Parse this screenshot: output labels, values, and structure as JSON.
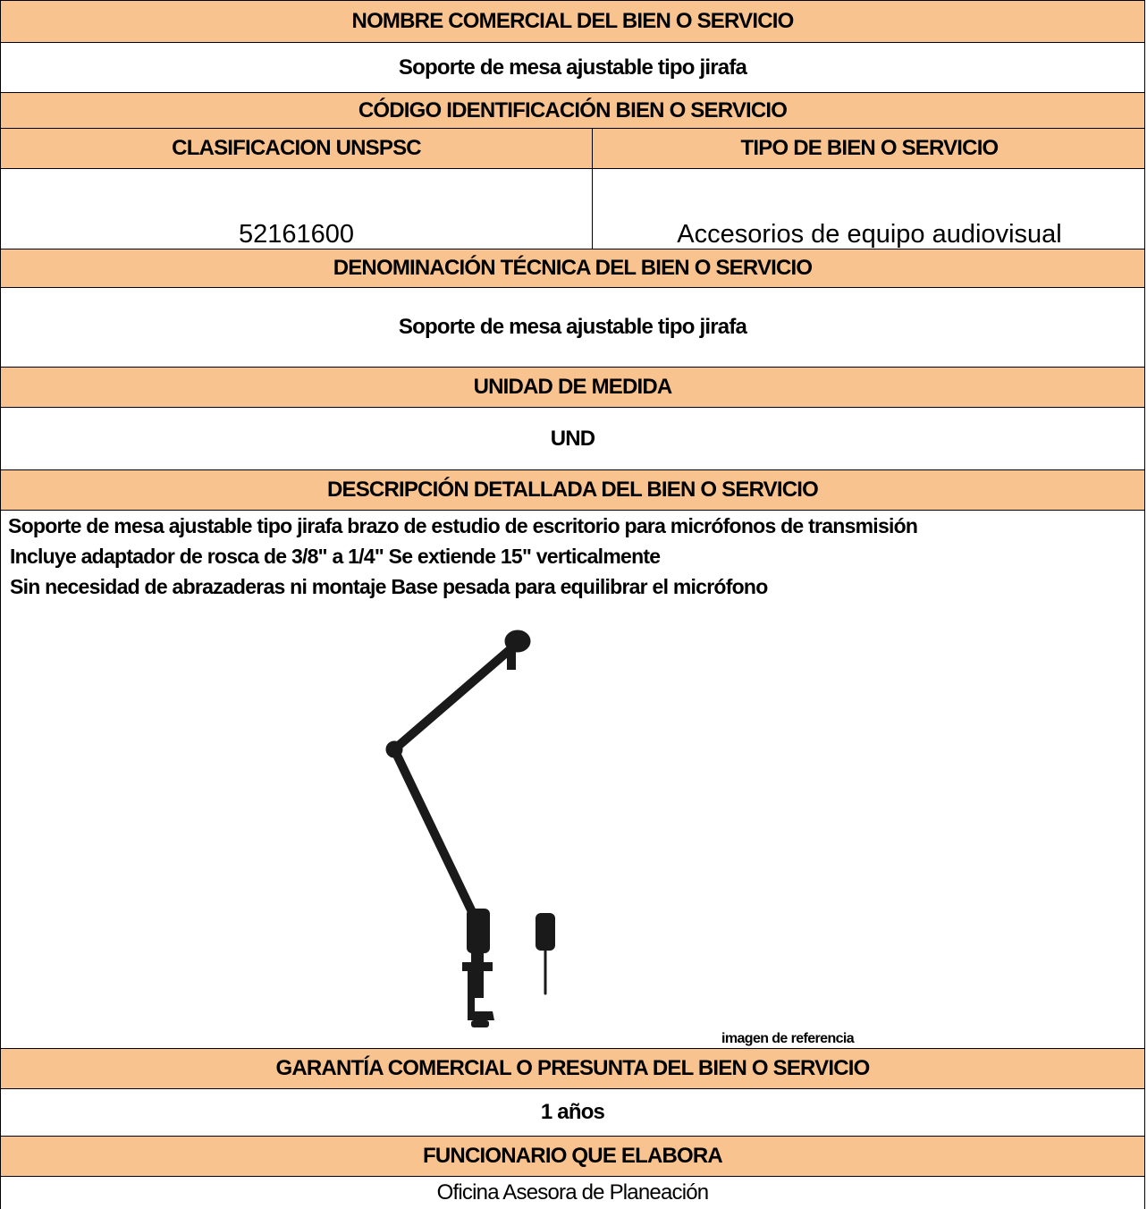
{
  "header": {
    "title": "NOMBRE COMERCIAL DEL BIEN O SERVICIO",
    "value": "Soporte de mesa ajustable tipo jirafa"
  },
  "code": {
    "title": "CÓDIGO IDENTIFICACIÓN BIEN O SERVICIO",
    "left_title": "CLASIFICACION UNSPSC",
    "right_title": "TIPO DE BIEN O SERVICIO",
    "left_value": "52161600",
    "right_value": "Accesorios de equipo audiovisual"
  },
  "technical": {
    "title": "DENOMINACIÓN TÉCNICA DEL BIEN O SERVICIO",
    "value": "Soporte de mesa ajustable tipo jirafa"
  },
  "unit": {
    "title": "UNIDAD DE MEDIDA",
    "value": "UND"
  },
  "description": {
    "title": "DESCRIPCIÓN DETALLADA DEL BIEN O SERVICIO",
    "lines": [
      "Soporte de mesa ajustable tipo jirafa brazo de estudio de escritorio para micrófonos de transmisión",
      "Incluye adaptador de rosca de 3/8\" a 1/4\" Se extiende 15\" verticalmente",
      "Sin necesidad de abrazaderas ni montaje Base pesada para equilibrar el micrófono"
    ],
    "image_caption": "imagen de referencia"
  },
  "warranty": {
    "title": "GARANTÍA COMERCIAL O PRESUNTA DEL BIEN O SERVICIO",
    "value": "1 años"
  },
  "author": {
    "title": "FUNCIONARIO QUE ELABORA",
    "value": "Oficina Asesora de Planeación"
  }
}
